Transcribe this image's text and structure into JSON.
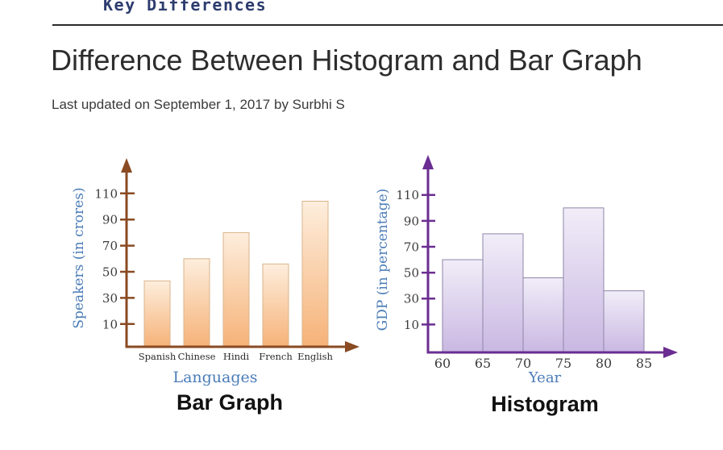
{
  "header": {
    "logo": "Key Differences"
  },
  "article": {
    "title": "Difference Between Histogram and Bar Graph",
    "byline": "Last updated on September 1, 2017 by Surbhi S"
  },
  "chart_data": [
    {
      "type": "bar",
      "caption": "Bar Graph",
      "xlabel": "Languages",
      "ylabel": "Speakers (in crores)",
      "categories": [
        "Spanish",
        "Chinese",
        "Hindi",
        "French",
        "English"
      ],
      "values": [
        43,
        60,
        80,
        56,
        104
      ],
      "y_ticks": [
        110,
        90,
        70,
        50,
        30,
        10
      ],
      "ylim": [
        0,
        120
      ],
      "grid": false,
      "legend": "none",
      "style": {
        "axis_color": "#8a4a22",
        "bar_gradient_top": "#fdeedd",
        "bar_gradient_bottom": "#f6b278",
        "bar_border": "#d9b48c",
        "label_color": "#4b7cb8",
        "tick_color": "#3b3b3b",
        "category_color": "#2a2a2a",
        "caption_color": "#111111"
      }
    },
    {
      "type": "histogram",
      "caption": "Histogram",
      "xlabel": "Year",
      "ylabel": "GDP (in percentage)",
      "bin_edges": [
        60,
        65,
        70,
        75,
        80,
        85
      ],
      "values": [
        60,
        80,
        46,
        100,
        36
      ],
      "x_ticks": [
        60,
        65,
        70,
        75,
        80,
        85
      ],
      "y_ticks": [
        110,
        90,
        70,
        50,
        30,
        10
      ],
      "ylim": [
        0,
        120
      ],
      "grid": false,
      "legend": "none",
      "style": {
        "axis_color": "#6b2d92",
        "bar_gradient_top": "#f1edf8",
        "bar_gradient_bottom": "#c9b8e2",
        "bar_border": "#8f86a8",
        "label_color": "#4b7cb8",
        "tick_color": "#3b3b3b",
        "category_color": "#3b3b3b",
        "caption_color": "#111111"
      }
    }
  ]
}
